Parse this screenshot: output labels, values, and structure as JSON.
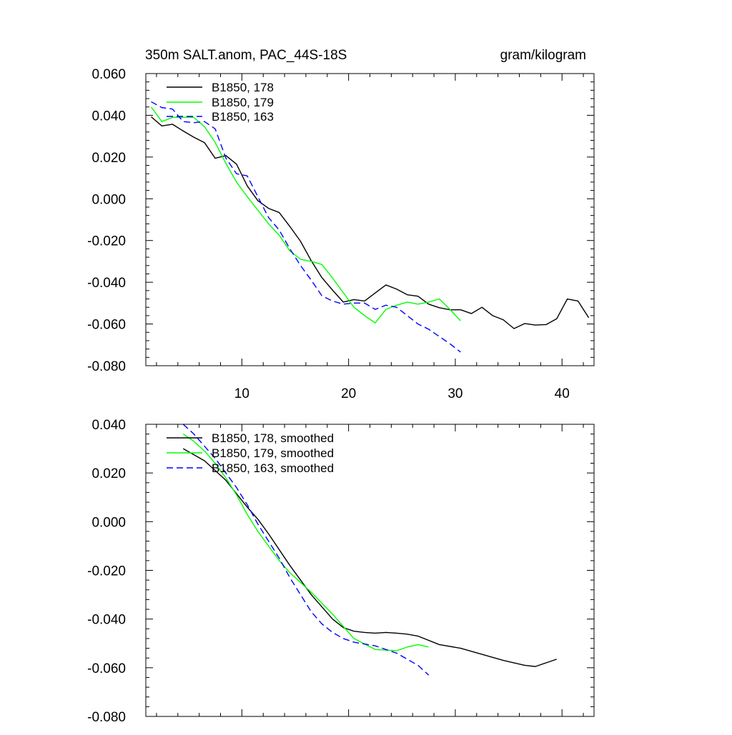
{
  "chart_data": [
    {
      "type": "line",
      "title": "350m SALT.anom, PAC_44S-18S",
      "units": "gram/kilogram",
      "xlim": [
        1,
        43
      ],
      "ylim": [
        -0.08,
        0.06
      ],
      "xticks": [
        10,
        20,
        30,
        40
      ],
      "xtick_labels": [
        "10",
        "20",
        "30",
        "40"
      ],
      "yticks": [
        -0.08,
        -0.06,
        -0.04,
        -0.02,
        0.0,
        0.02,
        0.04,
        0.06
      ],
      "ytick_labels": [
        "-0.080",
        "-0.060",
        "-0.040",
        "-0.020",
        "0.000",
        "0.020",
        "0.040",
        "0.060"
      ],
      "legend_position": "top-left",
      "series": [
        {
          "name": "B1850, 178",
          "color": "#000000",
          "dash": "solid",
          "x": [
            1.5,
            2.5,
            3.5,
            4.5,
            5.5,
            6.5,
            7.5,
            8.5,
            9.5,
            10.5,
            11.5,
            12.5,
            13.5,
            14.5,
            15.5,
            16.5,
            17.5,
            18.5,
            19.5,
            20.5,
            21.5,
            22.5,
            23.5,
            24.5,
            25.5,
            26.5,
            27.5,
            28.5,
            29.5,
            30.5,
            31.5,
            32.5,
            33.5,
            34.5,
            35.5,
            36.5,
            37.5,
            38.5,
            39.5,
            40.5,
            41.5,
            42.5
          ],
          "y": [
            0.0393,
            0.0349,
            0.0357,
            0.0325,
            0.0295,
            0.0269,
            0.0194,
            0.0207,
            0.0166,
            0.0062,
            -0.0009,
            -0.0046,
            -0.0066,
            -0.0133,
            -0.0204,
            -0.0297,
            -0.0378,
            -0.0438,
            -0.0495,
            -0.0483,
            -0.049,
            -0.0451,
            -0.0413,
            -0.0433,
            -0.046,
            -0.0467,
            -0.0505,
            -0.0522,
            -0.0532,
            -0.0532,
            -0.055,
            -0.052,
            -0.056,
            -0.058,
            -0.0622,
            -0.0598,
            -0.0605,
            -0.0603,
            -0.0575,
            -0.048,
            -0.049,
            -0.057
          ]
        },
        {
          "name": "B1850, 179",
          "color": "#00ff00",
          "dash": "solid",
          "x": [
            1.5,
            2.5,
            3.5,
            4.5,
            5.5,
            6.5,
            7.5,
            8.5,
            9.5,
            10.5,
            11.5,
            12.5,
            13.5,
            14.5,
            15.5,
            16.5,
            17.5,
            18.5,
            19.5,
            20.5,
            21.5,
            22.5,
            23.5,
            24.5,
            25.5,
            26.5,
            27.5,
            28.5,
            29.5,
            30.5
          ],
          "y": [
            0.044,
            0.037,
            0.039,
            0.039,
            0.039,
            0.0345,
            0.027,
            0.017,
            0.008,
            0.001,
            -0.0055,
            -0.012,
            -0.0175,
            -0.025,
            -0.029,
            -0.03,
            -0.0315,
            -0.038,
            -0.045,
            -0.052,
            -0.056,
            -0.0595,
            -0.053,
            -0.051,
            -0.0495,
            -0.0505,
            -0.0495,
            -0.048,
            -0.053,
            -0.0585
          ]
        },
        {
          "name": "B1850, 163",
          "color": "#0000ff",
          "dash": "dashed",
          "x": [
            1.5,
            2.5,
            3.5,
            4.5,
            5.5,
            6.5,
            7.5,
            8.5,
            9.5,
            10.5,
            11.5,
            12.5,
            13.5,
            14.5,
            15.5,
            16.5,
            17.5,
            18.5,
            19.5,
            20.5,
            21.5,
            22.5,
            23.5,
            24.5,
            25.5,
            26.5,
            27.5,
            28.5,
            29.5,
            30.5
          ],
          "y": [
            0.0465,
            0.0437,
            0.043,
            0.037,
            0.0365,
            0.037,
            0.0335,
            0.0195,
            0.012,
            0.011,
            0.001,
            -0.009,
            -0.015,
            -0.024,
            -0.032,
            -0.039,
            -0.0465,
            -0.049,
            -0.0505,
            -0.05,
            -0.05,
            -0.053,
            -0.051,
            -0.052,
            -0.056,
            -0.06,
            -0.0625,
            -0.066,
            -0.0695,
            -0.0735
          ]
        }
      ]
    },
    {
      "type": "line",
      "xlim": [
        1,
        43
      ],
      "ylim": [
        -0.08,
        0.04
      ],
      "xticks": [
        10,
        20,
        30,
        40
      ],
      "xtick_labels": [],
      "yticks": [
        -0.08,
        -0.06,
        -0.04,
        -0.02,
        0.0,
        0.02,
        0.04
      ],
      "ytick_labels": [
        "-0.080",
        "-0.060",
        "-0.040",
        "-0.020",
        "0.000",
        "0.020",
        "0.040"
      ],
      "legend_position": "top-left",
      "series": [
        {
          "name": "B1850, 178, smoothed",
          "color": "#000000",
          "dash": "solid",
          "x": [
            4.5,
            6.5,
            8.5,
            10.5,
            11.5,
            12.5,
            14.5,
            16.5,
            18.5,
            19.5,
            20.5,
            21.5,
            22.5,
            23.5,
            24.5,
            25.5,
            26.5,
            28.5,
            30.5,
            32.5,
            34.5,
            36.5,
            37.5,
            38.5,
            39.5
          ],
          "y": [
            0.03,
            0.025,
            0.017,
            0.006,
            0.001,
            -0.005,
            -0.018,
            -0.03,
            -0.04,
            -0.0435,
            -0.045,
            -0.0455,
            -0.0458,
            -0.0455,
            -0.0458,
            -0.0462,
            -0.047,
            -0.0505,
            -0.052,
            -0.0545,
            -0.057,
            -0.059,
            -0.0595,
            -0.058,
            -0.0565
          ]
        },
        {
          "name": "B1850, 179, smoothed",
          "color": "#00ff00",
          "dash": "solid",
          "x": [
            4.5,
            5.5,
            6.5,
            7.5,
            8.5,
            9.5,
            10.5,
            11.5,
            12.5,
            13.5,
            14.5,
            16.5,
            18.5,
            20.5,
            22.5,
            24.5,
            25.5,
            26.5,
            27.5
          ],
          "y": [
            0.036,
            0.033,
            0.029,
            0.024,
            0.018,
            0.011,
            0.003,
            -0.004,
            -0.01,
            -0.016,
            -0.021,
            -0.029,
            -0.038,
            -0.048,
            -0.0525,
            -0.053,
            -0.0515,
            -0.0505,
            -0.0515
          ]
        },
        {
          "name": "B1850, 163, smoothed",
          "color": "#0000ff",
          "dash": "dashed",
          "x": [
            4.5,
            5.5,
            6.5,
            7.5,
            8.5,
            9.5,
            10.5,
            11.5,
            12.5,
            13.5,
            14.5,
            15.5,
            16.5,
            17.5,
            18.5,
            19.5,
            20.5,
            22.5,
            24.5,
            26.5,
            27.5
          ],
          "y": [
            0.04,
            0.036,
            0.031,
            0.026,
            0.02,
            0.014,
            0.007,
            -0.001,
            -0.008,
            -0.015,
            -0.023,
            -0.03,
            -0.037,
            -0.042,
            -0.0455,
            -0.048,
            -0.0495,
            -0.051,
            -0.054,
            -0.059,
            -0.063
          ]
        }
      ]
    }
  ]
}
